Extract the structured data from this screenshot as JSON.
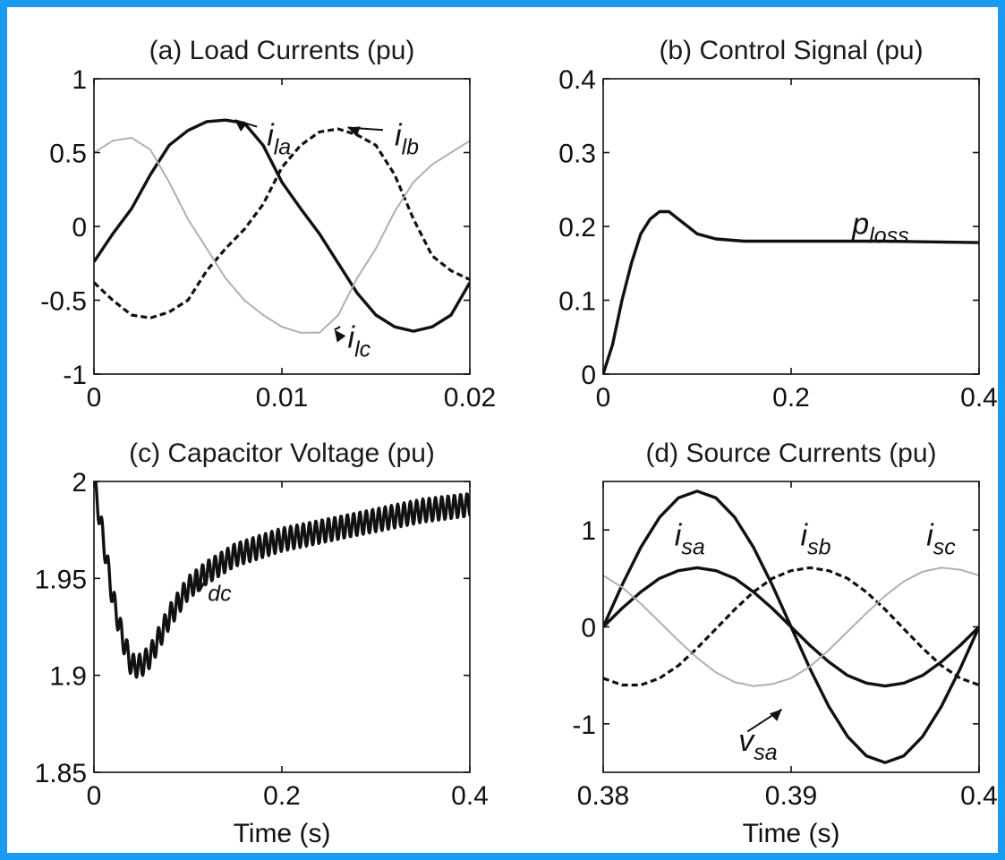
{
  "colors": {
    "page_border": "#1a9af0",
    "background": "#ffffff",
    "solid": "#111111",
    "dashed": "#111111",
    "light": "#b0b0b0"
  },
  "chart_data": [
    {
      "id": "a",
      "type": "line",
      "title": "(a) Load Currents (pu)",
      "xlabel": "",
      "ylabel": "",
      "xlim": [
        0,
        0.02
      ],
      "ylim": [
        -1,
        1
      ],
      "xticks": [
        0,
        0.01,
        0.02
      ],
      "xtick_labels": [
        "0",
        "0.01",
        "0.02"
      ],
      "yticks": [
        -1,
        -0.5,
        0,
        0.5,
        1
      ],
      "ytick_labels": [
        "-1",
        "-0.5",
        "0",
        "0.5",
        "1"
      ],
      "grid": false,
      "series": [
        {
          "name": "i_la",
          "style": "solid",
          "x": [
            0,
            0.001,
            0.002,
            0.003,
            0.004,
            0.005,
            0.006,
            0.007,
            0.008,
            0.009,
            0.01,
            0.011,
            0.012,
            0.013,
            0.014,
            0.015,
            0.016,
            0.017,
            0.018,
            0.019,
            0.02
          ],
          "y": [
            -0.24,
            -0.05,
            0.12,
            0.35,
            0.55,
            0.65,
            0.71,
            0.72,
            0.7,
            0.55,
            0.3,
            0.12,
            -0.05,
            -0.25,
            -0.45,
            -0.6,
            -0.68,
            -0.71,
            -0.68,
            -0.6,
            -0.38
          ]
        },
        {
          "name": "i_lb",
          "style": "dashed",
          "x": [
            0,
            0.001,
            0.002,
            0.003,
            0.004,
            0.005,
            0.006,
            0.007,
            0.008,
            0.009,
            0.01,
            0.011,
            0.012,
            0.013,
            0.014,
            0.015,
            0.016,
            0.017,
            0.018,
            0.019,
            0.02
          ],
          "y": [
            -0.38,
            -0.5,
            -0.6,
            -0.62,
            -0.58,
            -0.5,
            -0.3,
            -0.15,
            -0.02,
            0.15,
            0.4,
            0.55,
            0.64,
            0.66,
            0.62,
            0.55,
            0.35,
            0.05,
            -0.2,
            -0.3,
            -0.36
          ]
        },
        {
          "name": "i_lc",
          "style": "light",
          "x": [
            0,
            0.001,
            0.002,
            0.003,
            0.004,
            0.005,
            0.006,
            0.007,
            0.008,
            0.009,
            0.01,
            0.011,
            0.012,
            0.013,
            0.014,
            0.015,
            0.016,
            0.017,
            0.018,
            0.019,
            0.02
          ],
          "y": [
            0.5,
            0.58,
            0.6,
            0.52,
            0.3,
            0.05,
            -0.15,
            -0.35,
            -0.5,
            -0.6,
            -0.68,
            -0.72,
            -0.72,
            -0.6,
            -0.35,
            -0.15,
            0.1,
            0.3,
            0.42,
            0.5,
            0.58
          ]
        }
      ],
      "annotations": [
        {
          "base": "i",
          "sub": "la",
          "x": 0.0092,
          "y": 0.55,
          "arrow_to": [
            0.0075,
            0.72
          ]
        },
        {
          "base": "i",
          "sub": "lb",
          "x": 0.016,
          "y": 0.55,
          "arrow_to": [
            0.0135,
            0.67
          ]
        },
        {
          "base": "i",
          "sub": "lc",
          "x": 0.0135,
          "y": -0.82,
          "arrow_to": [
            0.0128,
            -0.7
          ]
        }
      ]
    },
    {
      "id": "b",
      "type": "line",
      "title": "(b) Control Signal (pu)",
      "xlabel": "",
      "ylabel": "",
      "xlim": [
        0,
        0.4
      ],
      "ylim": [
        0,
        0.4
      ],
      "xticks": [
        0,
        0.2,
        0.4
      ],
      "xtick_labels": [
        "0",
        "0.2",
        "0.4"
      ],
      "yticks": [
        0,
        0.1,
        0.2,
        0.3,
        0.4
      ],
      "ytick_labels": [
        "0",
        "0.1",
        "0.2",
        "0.3",
        "0.4"
      ],
      "grid": false,
      "series": [
        {
          "name": "p_loss",
          "style": "solid",
          "x": [
            0,
            0.01,
            0.02,
            0.03,
            0.04,
            0.05,
            0.06,
            0.07,
            0.08,
            0.09,
            0.1,
            0.12,
            0.15,
            0.2,
            0.3,
            0.4
          ],
          "y": [
            0,
            0.04,
            0.1,
            0.15,
            0.19,
            0.21,
            0.22,
            0.22,
            0.21,
            0.2,
            0.19,
            0.183,
            0.18,
            0.18,
            0.18,
            0.178
          ]
        }
      ],
      "annotations": [
        {
          "base": "p",
          "sub": "loss",
          "x": 0.265,
          "y": 0.19
        }
      ]
    },
    {
      "id": "c",
      "type": "line",
      "title": "(c) Capacitor Voltage (pu)",
      "xlabel": "Time (s)",
      "ylabel": "",
      "xlim": [
        0,
        0.4
      ],
      "ylim": [
        1.85,
        2.0
      ],
      "xticks": [
        0,
        0.2,
        0.4
      ],
      "xtick_labels": [
        "0",
        "0.2",
        "0.4"
      ],
      "yticks": [
        1.85,
        1.9,
        1.95,
        2.0
      ],
      "ytick_labels": [
        "1.85",
        "1.9",
        "1.95",
        "2"
      ],
      "grid": false,
      "series": [
        {
          "name": "v_dc",
          "style": "solid",
          "ripple": 0.012,
          "ripple_period": 0.0067,
          "x": [
            0,
            0.01,
            0.02,
            0.03,
            0.04,
            0.05,
            0.06,
            0.08,
            0.1,
            0.12,
            0.15,
            0.2,
            0.25,
            0.3,
            0.35,
            0.4
          ],
          "y": [
            2.0,
            1.97,
            1.94,
            1.92,
            1.905,
            1.905,
            1.91,
            1.93,
            1.945,
            1.953,
            1.962,
            1.97,
            1.975,
            1.98,
            1.985,
            1.988
          ]
        }
      ],
      "annotations": [
        {
          "base": "v",
          "sub": "dc",
          "x": 0.105,
          "y": 1.943
        }
      ]
    },
    {
      "id": "d",
      "type": "line",
      "title": "(d) Source Currents (pu)",
      "xlabel": "Time (s)",
      "ylabel": "",
      "xlim": [
        0.38,
        0.4
      ],
      "ylim": [
        -1.5,
        1.5
      ],
      "xticks": [
        0.38,
        0.39,
        0.4
      ],
      "xtick_labels": [
        "0.38",
        "0.39",
        "0.4"
      ],
      "yticks": [
        -1,
        0,
        1
      ],
      "ytick_labels": [
        "-1",
        "0",
        "1"
      ],
      "grid": false,
      "series": [
        {
          "name": "v_sa",
          "style": "solid",
          "x": [
            0.38,
            0.381,
            0.382,
            0.383,
            0.384,
            0.385,
            0.386,
            0.387,
            0.388,
            0.389,
            0.39,
            0.391,
            0.392,
            0.393,
            0.394,
            0.395,
            0.396,
            0.397,
            0.398,
            0.399,
            0.4
          ],
          "y": [
            0,
            0.43,
            0.82,
            1.13,
            1.33,
            1.4,
            1.33,
            1.13,
            0.82,
            0.43,
            0,
            -0.43,
            -0.82,
            -1.13,
            -1.33,
            -1.4,
            -1.33,
            -1.13,
            -0.82,
            -0.43,
            0
          ]
        },
        {
          "name": "i_sa",
          "style": "solid",
          "x": [
            0.38,
            0.381,
            0.382,
            0.383,
            0.384,
            0.385,
            0.386,
            0.387,
            0.388,
            0.389,
            0.39,
            0.391,
            0.392,
            0.393,
            0.394,
            0.395,
            0.396,
            0.397,
            0.398,
            0.399,
            0.4
          ],
          "y": [
            0,
            0.19,
            0.36,
            0.5,
            0.58,
            0.61,
            0.58,
            0.5,
            0.36,
            0.19,
            0,
            -0.19,
            -0.36,
            -0.5,
            -0.58,
            -0.61,
            -0.58,
            -0.5,
            -0.36,
            -0.19,
            0
          ]
        },
        {
          "name": "i_sb",
          "style": "dashed",
          "x": [
            0.38,
            0.381,
            0.382,
            0.383,
            0.384,
            0.385,
            0.386,
            0.387,
            0.388,
            0.389,
            0.39,
            0.391,
            0.392,
            0.393,
            0.394,
            0.395,
            0.396,
            0.397,
            0.398,
            0.399,
            0.4
          ],
          "y": [
            -0.53,
            -0.6,
            -0.6,
            -0.53,
            -0.4,
            -0.22,
            -0.02,
            0.18,
            0.36,
            0.5,
            0.58,
            0.61,
            0.58,
            0.5,
            0.36,
            0.18,
            -0.02,
            -0.22,
            -0.4,
            -0.53,
            -0.6
          ]
        },
        {
          "name": "i_sc",
          "style": "light",
          "x": [
            0.38,
            0.381,
            0.382,
            0.383,
            0.384,
            0.385,
            0.386,
            0.387,
            0.388,
            0.389,
            0.39,
            0.391,
            0.392,
            0.393,
            0.394,
            0.395,
            0.396,
            0.397,
            0.398,
            0.399,
            0.4
          ],
          "y": [
            0.53,
            0.41,
            0.24,
            0.05,
            -0.14,
            -0.32,
            -0.47,
            -0.57,
            -0.61,
            -0.59,
            -0.53,
            -0.41,
            -0.24,
            -0.05,
            0.14,
            0.32,
            0.47,
            0.57,
            0.61,
            0.59,
            0.53
          ]
        }
      ],
      "annotations": [
        {
          "base": "i",
          "sub": "sa",
          "x": 0.3838,
          "y": 0.84
        },
        {
          "base": "i",
          "sub": "sb",
          "x": 0.3905,
          "y": 0.84
        },
        {
          "base": "i",
          "sub": "sc",
          "x": 0.3972,
          "y": 0.84
        },
        {
          "base": "v",
          "sub": "sa",
          "x": 0.3872,
          "y": -1.28,
          "arrow_to": [
            0.3895,
            -0.85
          ]
        }
      ]
    }
  ]
}
